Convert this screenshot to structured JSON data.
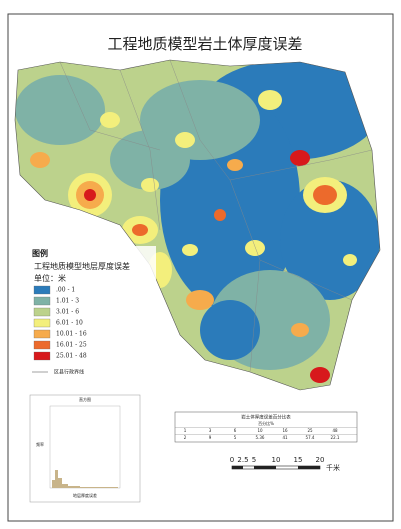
{
  "header": {
    "title": "工程地质模型岩土体厚度误差"
  },
  "legend": {
    "heading": "图例",
    "subtitle": "工程地质模型地层厚度误差",
    "unit": "单位：米",
    "items": [
      {
        "label": ".00 - 1",
        "color": "#2b7bba"
      },
      {
        "label": "1.01 - 3",
        "color": "#7fb2a6"
      },
      {
        "label": "3.01 - 6",
        "color": "#bcd28c"
      },
      {
        "label": "6.01 - 10",
        "color": "#f3ef7c"
      },
      {
        "label": "10.01 - 16",
        "color": "#f6ab4c"
      },
      {
        "label": "16.01 - 25",
        "color": "#ec6a2c"
      },
      {
        "label": "25.01 - 48",
        "color": "#d7191c"
      }
    ],
    "boundary": "区县行政界线"
  },
  "scale_bar": {
    "labels": [
      "0",
      "2.5",
      "5",
      "10",
      "15",
      "20"
    ],
    "unit": "千米"
  },
  "histogram": {
    "title": "直方图",
    "y_label": "频率",
    "x_label": "地层厚度误差"
  },
  "table": {
    "title": "岩土体厚度误差百分比表",
    "header": "百分比%",
    "rows": [
      [
        "1",
        "3",
        "6",
        "10",
        "16",
        "25",
        "48"
      ],
      [
        "2",
        "9",
        "5",
        "5.36",
        "41",
        "57.4",
        "22.1"
      ]
    ]
  }
}
